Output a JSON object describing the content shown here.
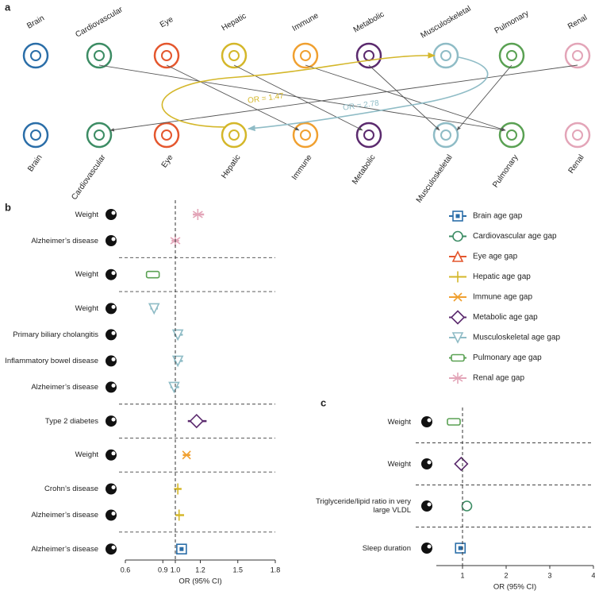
{
  "panel_labels": [
    "a",
    "b",
    "c"
  ],
  "panel_a": {
    "organs": [
      "Brain",
      "Cardiovascular",
      "Eye",
      "Hepatic",
      "Immune",
      "Metabolic",
      "Musculoskeletal",
      "Pulmonary",
      "Renal"
    ],
    "colors": [
      "#2b6ea8",
      "#3c8c64",
      "#e4572e",
      "#d4b72a",
      "#f0a030",
      "#5b2a6e",
      "#8fbcc6",
      "#5aa153",
      "#e3a5b8"
    ],
    "arrows": [
      {
        "from": 1,
        "to": 7
      },
      {
        "from": 2,
        "to": 4
      },
      {
        "from": 3,
        "to": 5
      },
      {
        "from": 4,
        "to": 7
      },
      {
        "from": 5,
        "to": 6
      },
      {
        "from": 7,
        "to": 6
      },
      {
        "from": 8,
        "to": 1
      }
    ],
    "loops": [
      {
        "from": 3,
        "to": 6,
        "label": "OR = 1.47",
        "color": "#d4b72a"
      },
      {
        "from": 6,
        "to": 3,
        "label": "OR = 2.78",
        "color": "#8fbcc6"
      }
    ]
  },
  "legend": [
    {
      "name": "Brain age gap",
      "color": "#2b6ea8",
      "shape": "square"
    },
    {
      "name": "Cardiovascular age gap",
      "color": "#3c8c64",
      "shape": "circle"
    },
    {
      "name": "Eye age gap",
      "color": "#e4572e",
      "shape": "triangle-up"
    },
    {
      "name": "Hepatic age gap",
      "color": "#d4b72a",
      "shape": "vline"
    },
    {
      "name": "Immune age gap",
      "color": "#f0a030",
      "shape": "cross"
    },
    {
      "name": "Metabolic age gap",
      "color": "#5b2a6e",
      "shape": "diamond"
    },
    {
      "name": "Musculoskeletal age gap",
      "color": "#8fbcc6",
      "shape": "triangle-down"
    },
    {
      "name": "Pulmonary age gap",
      "color": "#5aa153",
      "shape": "rect"
    },
    {
      "name": "Renal age gap",
      "color": "#e3a5b8",
      "shape": "asterisk"
    }
  ],
  "chart_data": [
    {
      "type": "forest",
      "xlabel": "OR (95% CI)",
      "xlim": [
        0.6,
        1.8
      ],
      "xticks": [
        0.6,
        0.9,
        {
          "value": 1,
          "label": "1.0"
        },
        1.2,
        1.5,
        1.8
      ],
      "reference_line": 1,
      "groups": [
        {
          "series": 8,
          "rows": [
            {
              "label": "Weight",
              "value": 1.18,
              "ci": [
                1.14,
                1.23
              ]
            },
            {
              "label": "Alzheimer’s disease",
              "value": 1.0,
              "ci": [
                0.97,
                1.03
              ]
            }
          ]
        },
        {
          "series": 7,
          "rows": [
            {
              "label": "Weight",
              "value": 0.82,
              "ci": [
                0.79,
                0.86
              ]
            }
          ]
        },
        {
          "series": 6,
          "rows": [
            {
              "label": "Weight",
              "value": 0.83,
              "ci": [
                0.8,
                0.86
              ]
            },
            {
              "label": "Primary biliary cholangitis",
              "value": 1.02,
              "ci": [
                0.99,
                1.06
              ]
            },
            {
              "label": "Inflammatory bowel disease",
              "value": 1.02,
              "ci": [
                0.99,
                1.06
              ]
            },
            {
              "label": "Alzheimer’s disease",
              "value": 0.99,
              "ci": [
                0.96,
                1.03
              ]
            }
          ]
        },
        {
          "series": 5,
          "rows": [
            {
              "label": "Type 2 diabetes",
              "value": 1.17,
              "ci": [
                1.1,
                1.25
              ]
            }
          ]
        },
        {
          "series": 4,
          "rows": [
            {
              "label": "Weight",
              "value": 1.09,
              "ci": [
                1.06,
                1.12
              ]
            }
          ]
        },
        {
          "series": 3,
          "rows": [
            {
              "label": "Crohn’s disease",
              "value": 1.02,
              "ci": [
                0.99,
                1.05
              ]
            },
            {
              "label": "Alzheimer’s disease",
              "value": 1.03,
              "ci": [
                1.0,
                1.07
              ]
            }
          ]
        },
        {
          "series": 0,
          "rows": [
            {
              "label": "Alzheimer’s disease",
              "value": 1.05,
              "ci": [
                1.03,
                1.08
              ]
            }
          ]
        }
      ]
    },
    {
      "type": "forest",
      "xlabel": "OR (95% CI)",
      "xlim": [
        0.4,
        4
      ],
      "xticks": [
        1,
        2,
        3,
        4
      ],
      "reference_line": 1,
      "groups": [
        {
          "series": 7,
          "rows": [
            {
              "label": "Weight",
              "value": 0.8,
              "ci": [
                0.7,
                0.9
              ]
            }
          ]
        },
        {
          "series": 5,
          "rows": [
            {
              "label": "Weight",
              "value": 0.97,
              "ci": [
                0.88,
                1.06
              ]
            }
          ]
        },
        {
          "series": 1,
          "rows": [
            {
              "label": "Triglyceride/lipid ratio in very large VLDL",
              "value": 1.1,
              "ci": [
                1.02,
                1.18
              ]
            }
          ]
        },
        {
          "series": 0,
          "rows": [
            {
              "label": "Sleep duration",
              "value": 0.95,
              "ci": [
                0.87,
                1.03
              ]
            }
          ]
        }
      ]
    }
  ]
}
